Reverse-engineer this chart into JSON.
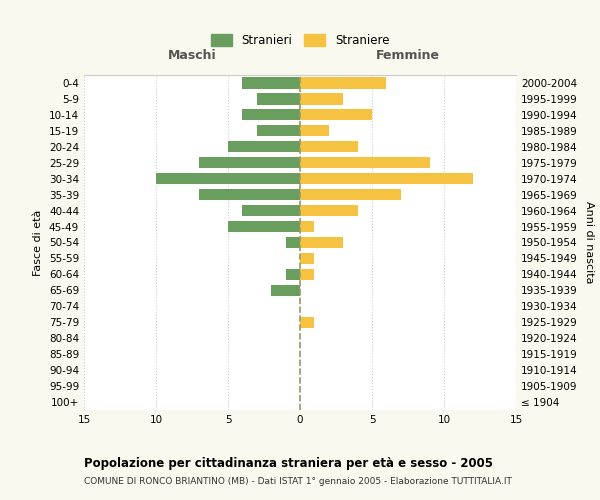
{
  "age_groups": [
    "100+",
    "95-99",
    "90-94",
    "85-89",
    "80-84",
    "75-79",
    "70-74",
    "65-69",
    "60-64",
    "55-59",
    "50-54",
    "45-49",
    "40-44",
    "35-39",
    "30-34",
    "25-29",
    "20-24",
    "15-19",
    "10-14",
    "5-9",
    "0-4"
  ],
  "birth_years": [
    "≤ 1904",
    "1905-1909",
    "1910-1914",
    "1915-1919",
    "1920-1924",
    "1925-1929",
    "1930-1934",
    "1935-1939",
    "1940-1944",
    "1945-1949",
    "1950-1954",
    "1955-1959",
    "1960-1964",
    "1965-1969",
    "1970-1974",
    "1975-1979",
    "1980-1984",
    "1985-1989",
    "1990-1994",
    "1995-1999",
    "2000-2004"
  ],
  "maschi": [
    0,
    0,
    0,
    0,
    0,
    0,
    0,
    2,
    1,
    0,
    1,
    5,
    4,
    7,
    10,
    7,
    5,
    3,
    4,
    3,
    4
  ],
  "femmine": [
    0,
    0,
    0,
    0,
    0,
    1,
    0,
    0,
    1,
    1,
    3,
    1,
    4,
    7,
    12,
    9,
    4,
    2,
    5,
    3,
    6
  ],
  "maschi_color": "#6a9e5e",
  "femmine_color": "#f5c242",
  "grid_color": "#cccccc",
  "dashed_line_color": "#999966",
  "xlim": 15,
  "title": "Popolazione per cittadinanza straniera per età e sesso - 2005",
  "subtitle": "COMUNE DI RONCO BRIANTINO (MB) - Dati ISTAT 1° gennaio 2005 - Elaborazione TUTTITALIA.IT",
  "ylabel_left": "Fasce di età",
  "ylabel_right": "Anni di nascita",
  "header_left": "Maschi",
  "header_right": "Femmine",
  "legend_stranieri": "Stranieri",
  "legend_straniere": "Straniere",
  "bg_color": "#f9f9f0",
  "plot_bg_color": "#ffffff",
  "xticks": [
    -15,
    -10,
    -5,
    0,
    5,
    10,
    15
  ]
}
